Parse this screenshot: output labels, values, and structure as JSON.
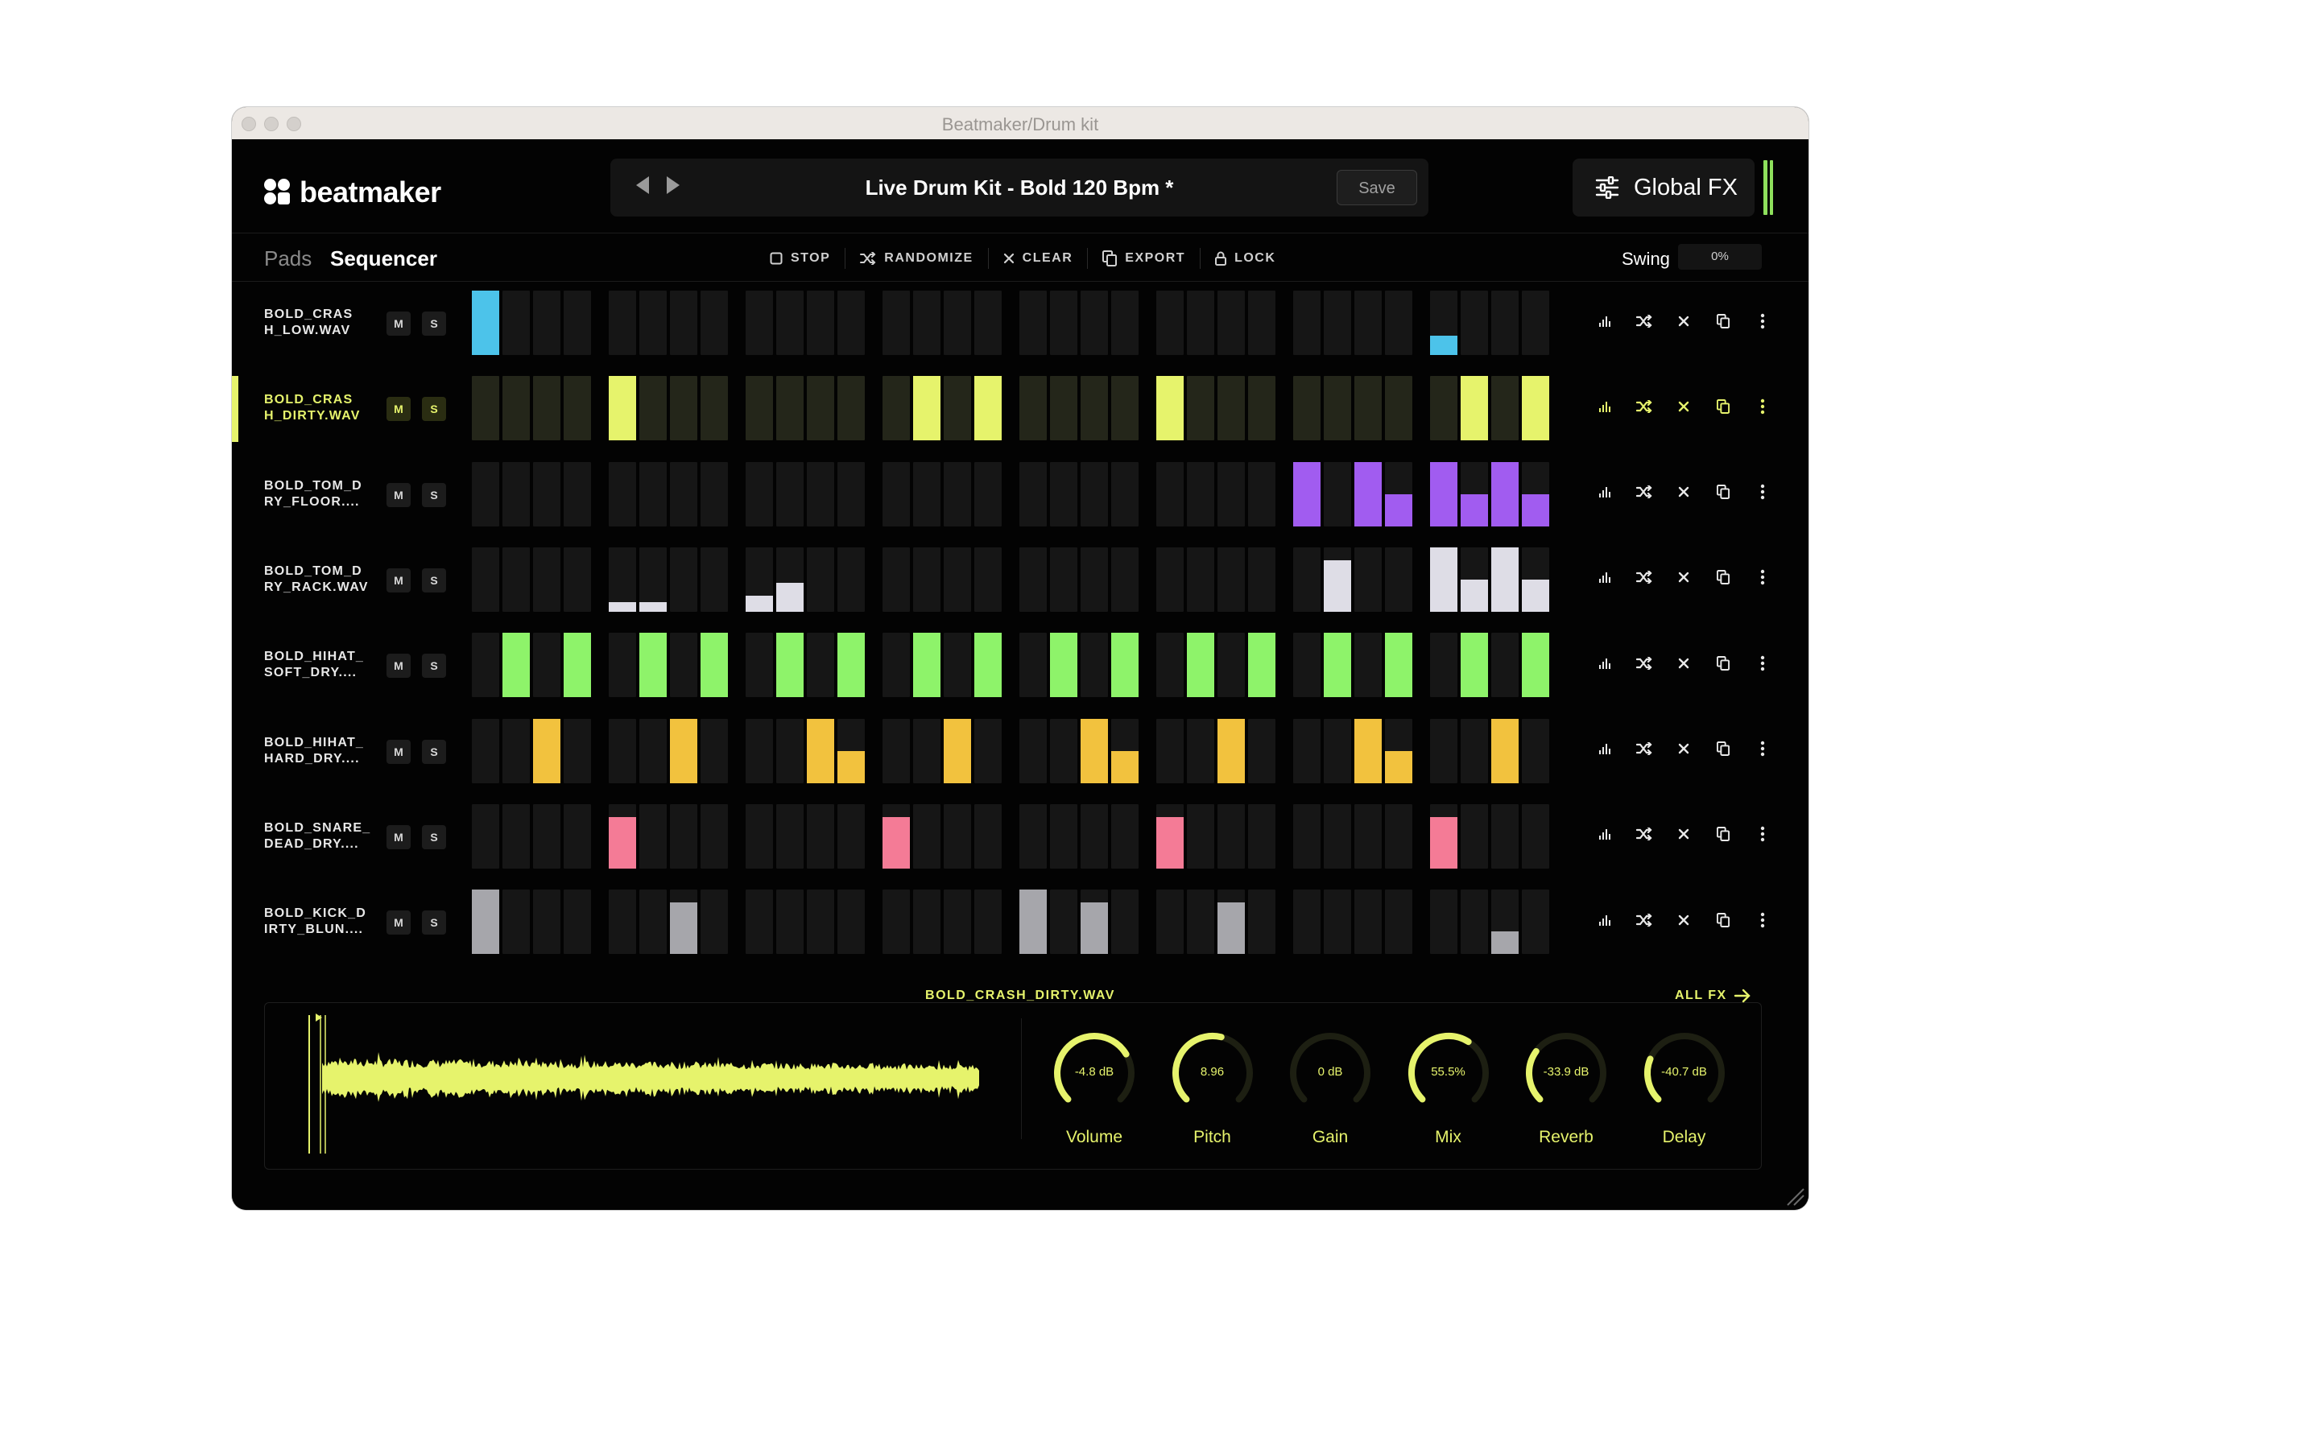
{
  "window": {
    "title": "Beatmaker/Drum kit"
  },
  "header": {
    "logo_text": "beatmaker",
    "preset_name": "Live Drum Kit - Bold 120 Bpm *",
    "save_label": "Save",
    "global_fx_label": "Global FX"
  },
  "tabs": {
    "pads": "Pads",
    "sequencer": "Sequencer"
  },
  "toolbar": {
    "stop": "STOP",
    "randomize": "RANDOMIZE",
    "clear": "CLEAR",
    "export": "EXPORT",
    "lock": "LOCK"
  },
  "swing": {
    "label": "Swing",
    "value": "0%"
  },
  "tracks": [
    {
      "line1": "BOLD_CRAS",
      "line2": "H_LOW.WAV",
      "color": "#4cc3ea",
      "active": false,
      "steps": [
        1,
        0,
        0,
        0,
        0,
        0,
        0,
        0,
        0,
        0,
        0,
        0,
        0,
        0,
        0,
        0,
        0,
        0,
        0,
        0,
        0,
        0,
        0,
        0,
        0,
        0,
        0,
        0,
        0.3,
        0,
        0,
        0
      ]
    },
    {
      "line1": "BOLD_CRAS",
      "line2": "H_DIRTY.WAV",
      "color": "#e6f36c",
      "active": true,
      "steps": [
        0,
        0,
        0,
        0,
        1,
        0,
        0,
        0,
        0,
        0,
        0,
        0,
        0,
        1,
        0,
        1,
        0,
        0,
        0,
        0,
        1,
        0,
        0,
        0,
        0,
        0,
        0,
        0,
        0,
        1,
        0,
        1
      ]
    },
    {
      "line1": "BOLD_TOM_D",
      "line2": "RY_FLOOR....",
      "color": "#a15cf0",
      "active": false,
      "steps": [
        0,
        0,
        0,
        0,
        0,
        0,
        0,
        0,
        0,
        0,
        0,
        0,
        0,
        0,
        0,
        0,
        0,
        0,
        0,
        0,
        0,
        0,
        0,
        0,
        1,
        0,
        1,
        0.5,
        1,
        0.5,
        1,
        0.5
      ]
    },
    {
      "line1": "BOLD_TOM_D",
      "line2": "RY_RACK.WAV",
      "color": "#dedde6",
      "active": false,
      "steps": [
        0,
        0,
        0,
        0,
        0.15,
        0.15,
        0,
        0,
        0.25,
        0.45,
        0,
        0,
        0,
        0,
        0,
        0,
        0,
        0,
        0,
        0,
        0,
        0,
        0,
        0,
        0,
        0.8,
        0,
        0,
        1,
        0.5,
        1,
        0.5
      ]
    },
    {
      "line1": "BOLD_HIHAT_",
      "line2": "SOFT_DRY....",
      "color": "#8ef36a",
      "active": false,
      "steps": [
        0,
        1,
        0,
        1,
        0,
        1,
        0,
        1,
        0,
        1,
        0,
        1,
        0,
        1,
        0,
        1,
        0,
        1,
        0,
        1,
        0,
        1,
        0,
        1,
        0,
        1,
        0,
        1,
        0,
        1,
        0,
        1
      ]
    },
    {
      "line1": "BOLD_HIHAT_",
      "line2": "HARD_DRY....",
      "color": "#f2c23e",
      "active": false,
      "steps": [
        0,
        0,
        1,
        0,
        0,
        0,
        1,
        0,
        0,
        0,
        1,
        0.5,
        0,
        0,
        1,
        0,
        0,
        0,
        1,
        0.5,
        0,
        0,
        1,
        0,
        0,
        0,
        1,
        0.5,
        0,
        0,
        1,
        0
      ]
    },
    {
      "line1": "BOLD_SNARE_",
      "line2": "DEAD_DRY....",
      "color": "#f47b96",
      "active": false,
      "steps": [
        0,
        0,
        0,
        0,
        0.8,
        0,
        0,
        0,
        0,
        0,
        0,
        0,
        0.8,
        0,
        0,
        0,
        0,
        0,
        0,
        0,
        0.8,
        0,
        0,
        0,
        0,
        0,
        0,
        0,
        0.8,
        0,
        0,
        0
      ]
    },
    {
      "line1": "BOLD_KICK_D",
      "line2": "IRTY_BLUN....",
      "color": "#a6a6ab",
      "active": false,
      "steps": [
        1,
        0,
        0,
        0,
        0,
        0,
        0.8,
        0,
        0,
        0,
        0,
        0,
        0,
        0,
        0,
        0,
        1,
        0,
        0.8,
        0,
        0,
        0,
        0.8,
        0,
        0,
        0,
        0,
        0,
        0,
        0,
        0.35,
        0
      ]
    }
  ],
  "track_labels": {
    "mute": "M",
    "solo": "S"
  },
  "sample_panel": {
    "sample_name": "BOLD_CRASH_DIRTY.WAV",
    "all_fx_label": "ALL FX"
  },
  "knobs": [
    {
      "label": "Volume",
      "value": "-4.8 dB",
      "level": 0.72
    },
    {
      "label": "Pitch",
      "value": "8.96",
      "level": 0.55
    },
    {
      "label": "Gain",
      "value": "0 dB",
      "level": 0.0
    },
    {
      "label": "Mix",
      "value": "55.5%",
      "level": 0.62
    },
    {
      "label": "Reverb",
      "value": "-33.9 dB",
      "level": 0.3
    },
    {
      "label": "Delay",
      "value": "-40.7 dB",
      "level": 0.25
    }
  ],
  "colors": {
    "accent": "#e6f36c",
    "inactive_step": "#161616",
    "active_track_step": "#24261a"
  },
  "icons": {
    "global_fx": "sliders-icon",
    "stop": "square-icon",
    "randomize": "shuffle-icon",
    "clear": "x-icon",
    "export": "copy-icon",
    "lock": "lock-icon",
    "row": [
      "bars-icon",
      "shuffle-icon",
      "x-icon",
      "copy-icon",
      "more-vertical-icon"
    ]
  }
}
